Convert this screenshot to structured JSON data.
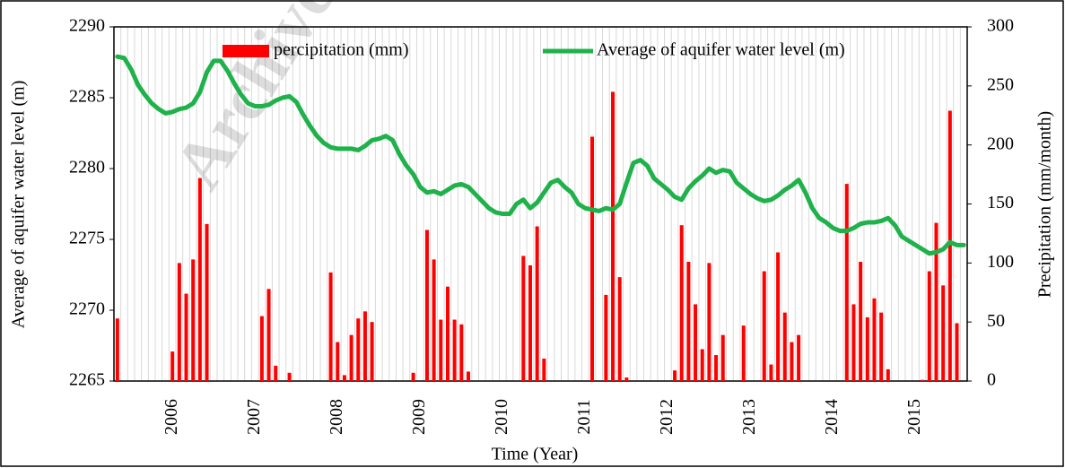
{
  "chart_data": {
    "type": "combo",
    "watermark": "Archive",
    "x_label": "Time (Year)",
    "y_label": "Average of aquifer water level (m)",
    "y2_label": "Precipitation (mm/month)",
    "categories": [
      null,
      null,
      null,
      null,
      null,
      null,
      null,
      null,
      "2006",
      null,
      null,
      null,
      null,
      null,
      null,
      null,
      null,
      null,
      null,
      null,
      "2007",
      null,
      null,
      null,
      null,
      null,
      null,
      null,
      null,
      null,
      null,
      null,
      "2008",
      null,
      null,
      null,
      null,
      null,
      null,
      null,
      null,
      null,
      null,
      null,
      "2009",
      null,
      null,
      null,
      null,
      null,
      null,
      null,
      null,
      null,
      null,
      null,
      "2010",
      null,
      null,
      null,
      null,
      null,
      null,
      null,
      null,
      null,
      null,
      null,
      "2011",
      null,
      null,
      null,
      null,
      null,
      null,
      null,
      null,
      null,
      null,
      null,
      "2012",
      null,
      null,
      null,
      null,
      null,
      null,
      null,
      null,
      null,
      null,
      null,
      "2013",
      null,
      null,
      null,
      null,
      null,
      null,
      null,
      null,
      null,
      null,
      null,
      "2014",
      null,
      null,
      null,
      null,
      null,
      null,
      null,
      null,
      null,
      null,
      null,
      "2015",
      null,
      null,
      null,
      null,
      null,
      null,
      null
    ],
    "ylim": [
      2265,
      2290
    ],
    "yticks": [
      2265,
      2270,
      2275,
      2280,
      2285,
      2290
    ],
    "y2lim": [
      0,
      300
    ],
    "y2ticks": [
      0,
      50,
      100,
      150,
      200,
      250,
      300
    ],
    "vertical_grid": true,
    "series": [
      {
        "name": "percipitation (mm)",
        "type": "bar",
        "axis": "y2",
        "color": "#ff0000",
        "values": [
          53,
          0,
          0,
          0,
          0,
          0,
          0,
          0,
          25,
          100,
          74,
          103,
          172,
          133,
          0,
          0,
          0,
          0,
          0,
          0,
          0,
          55,
          78,
          13,
          0,
          7,
          0,
          0,
          0,
          0,
          0,
          92,
          33,
          5,
          39,
          53,
          59,
          50,
          0,
          0,
          0,
          0,
          0,
          7,
          0,
          128,
          103,
          52,
          80,
          52,
          48,
          8,
          0,
          0,
          0,
          0,
          0,
          0,
          0,
          106,
          98,
          131,
          19,
          0,
          0,
          0,
          0,
          0,
          0,
          207,
          0,
          73,
          245,
          88,
          3,
          0,
          0,
          0,
          0,
          0,
          0,
          9,
          132,
          101,
          65,
          27,
          100,
          22,
          39,
          0,
          0,
          47,
          0,
          0,
          93,
          14,
          109,
          58,
          33,
          39,
          0,
          0,
          0,
          0,
          0,
          0,
          167,
          65,
          101,
          54,
          70,
          58,
          10,
          0,
          0,
          0,
          0,
          1,
          93,
          134,
          81,
          229,
          49,
          0
        ]
      },
      {
        "name": "Average of aquifer water level (m)",
        "type": "line",
        "axis": "y",
        "color": "#1fb24a",
        "values": [
          2287.9,
          2287.8,
          2287,
          2285.9,
          2285.2,
          2284.6,
          2284.2,
          2283.9,
          2284,
          2284.2,
          2284.3,
          2284.6,
          2285.4,
          2286.8,
          2287.6,
          2287.6,
          2286.9,
          2286,
          2285.2,
          2284.6,
          2284.4,
          2284.4,
          2284.5,
          2284.8,
          2285,
          2285.1,
          2284.7,
          2283.8,
          2283,
          2282.3,
          2281.8,
          2281.5,
          2281.4,
          2281.4,
          2281.4,
          2281.3,
          2281.6,
          2282,
          2282.1,
          2282.3,
          2282,
          2281,
          2280.2,
          2279.6,
          2278.7,
          2278.3,
          2278.4,
          2278.2,
          2278.5,
          2278.8,
          2278.9,
          2278.7,
          2278.2,
          2277.7,
          2277.2,
          2276.9,
          2276.8,
          2276.8,
          2277.5,
          2277.8,
          2277.2,
          2277.6,
          2278.3,
          2279,
          2279.2,
          2278.7,
          2278.3,
          2277.5,
          2277.2,
          2277.1,
          2277,
          2277.2,
          2277.1,
          2277.5,
          2279,
          2280.4,
          2280.6,
          2280.2,
          2279.3,
          2278.9,
          2278.5,
          2278,
          2277.8,
          2278.6,
          2279.1,
          2279.5,
          2280,
          2279.7,
          2279.9,
          2279.8,
          2279,
          2278.6,
          2278.2,
          2277.9,
          2277.7,
          2277.8,
          2278.1,
          2278.5,
          2278.8,
          2279.2,
          2278.3,
          2277.2,
          2276.5,
          2276.2,
          2275.8,
          2275.6,
          2275.6,
          2275.8,
          2276.1,
          2276.2,
          2276.2,
          2276.3,
          2276.5,
          2276,
          2275.2,
          2274.9,
          2274.6,
          2274.3,
          2274,
          2274.1,
          2274.3,
          2274.8,
          2274.6,
          2274.6
        ]
      }
    ]
  }
}
